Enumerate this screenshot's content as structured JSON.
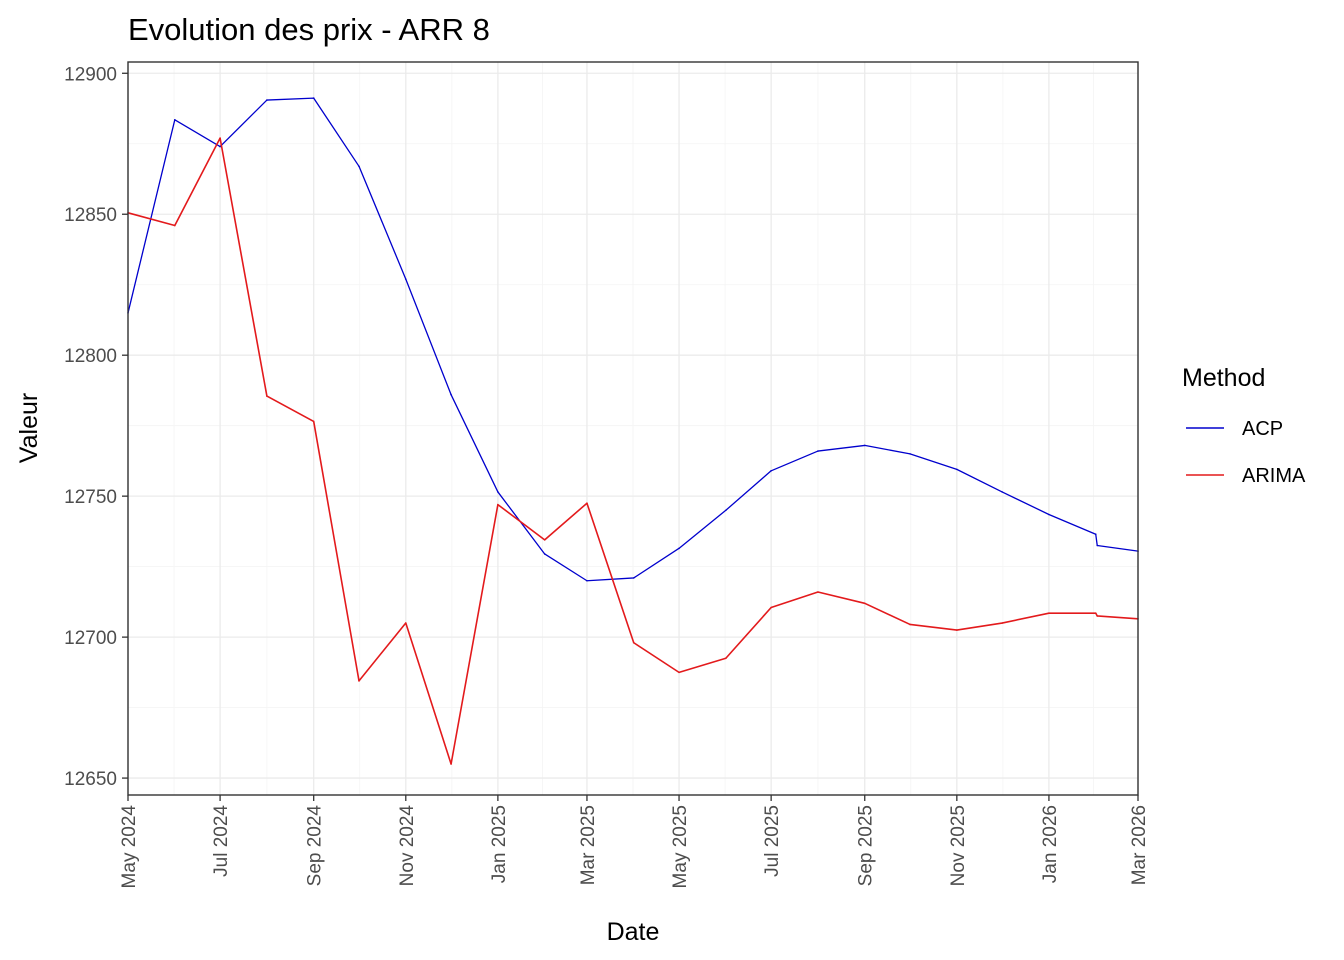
{
  "chart_data": {
    "type": "line",
    "title": "Evolution des prix - ARR 8",
    "xlabel": "Date",
    "ylabel": "Valeur",
    "legend_title": "Method",
    "legend_position": "right",
    "grid": true,
    "xlim": [
      "2024-05-01",
      "2026-03-01"
    ],
    "ylim": [
      12644,
      12904
    ],
    "y_ticks": [
      12650,
      12700,
      12750,
      12800,
      12850,
      12900
    ],
    "x_ticks": [
      {
        "date": "2024-05-01",
        "label": "May 2024"
      },
      {
        "date": "2024-07-01",
        "label": "Jul 2024"
      },
      {
        "date": "2024-09-01",
        "label": "Sep 2024"
      },
      {
        "date": "2024-11-01",
        "label": "Nov 2024"
      },
      {
        "date": "2025-01-01",
        "label": "Jan 2025"
      },
      {
        "date": "2025-03-01",
        "label": "Mar 2025"
      },
      {
        "date": "2025-05-01",
        "label": "May 2025"
      },
      {
        "date": "2025-07-01",
        "label": "Jul 2025"
      },
      {
        "date": "2025-09-01",
        "label": "Sep 2025"
      },
      {
        "date": "2025-11-01",
        "label": "Nov 2025"
      },
      {
        "date": "2026-01-01",
        "label": "Jan 2026"
      },
      {
        "date": "2026-03-01",
        "label": "Mar 2026"
      }
    ],
    "series": [
      {
        "name": "ACP",
        "color": "#0000cd",
        "points": [
          {
            "x": "2024-05-01",
            "y": 12815
          },
          {
            "x": "2024-06-01",
            "y": 12883.5
          },
          {
            "x": "2024-07-01",
            "y": 12874
          },
          {
            "x": "2024-08-01",
            "y": 12890.5
          },
          {
            "x": "2024-09-01",
            "y": 12891.2
          },
          {
            "x": "2024-10-01",
            "y": 12867
          },
          {
            "x": "2024-11-01",
            "y": 12827
          },
          {
            "x": "2024-12-01",
            "y": 12786
          },
          {
            "x": "2025-01-01",
            "y": 12751.5
          },
          {
            "x": "2025-02-01",
            "y": 12729.5
          },
          {
            "x": "2025-03-01",
            "y": 12720
          },
          {
            "x": "2025-04-01",
            "y": 12721
          },
          {
            "x": "2025-05-01",
            "y": 12731.5
          },
          {
            "x": "2025-06-01",
            "y": 12745
          },
          {
            "x": "2025-07-01",
            "y": 12759
          },
          {
            "x": "2025-08-01",
            "y": 12766
          },
          {
            "x": "2025-09-01",
            "y": 12768
          },
          {
            "x": "2025-10-01",
            "y": 12765
          },
          {
            "x": "2025-11-01",
            "y": 12759.5
          },
          {
            "x": "2025-12-01",
            "y": 12751.5
          },
          {
            "x": "2026-01-01",
            "y": 12743.5
          },
          {
            "x": "2026-02-01",
            "y": 12736.5
          },
          {
            "x": "2026-02-02",
            "y": 12732.5
          },
          {
            "x": "2026-03-01",
            "y": 12730.5
          }
        ]
      },
      {
        "name": "ARIMA",
        "color": "#e31a1c",
        "points": [
          {
            "x": "2024-05-01",
            "y": 12850.5
          },
          {
            "x": "2024-06-01",
            "y": 12846
          },
          {
            "x": "2024-07-01",
            "y": 12877
          },
          {
            "x": "2024-08-01",
            "y": 12785.5
          },
          {
            "x": "2024-09-01",
            "y": 12776.5
          },
          {
            "x": "2024-10-01",
            "y": 12684.5
          },
          {
            "x": "2024-11-01",
            "y": 12705
          },
          {
            "x": "2024-12-01",
            "y": 12655
          },
          {
            "x": "2025-01-01",
            "y": 12747
          },
          {
            "x": "2025-02-01",
            "y": 12734.5
          },
          {
            "x": "2025-03-01",
            "y": 12747.5
          },
          {
            "x": "2025-04-01",
            "y": 12698
          },
          {
            "x": "2025-05-01",
            "y": 12687.5
          },
          {
            "x": "2025-06-01",
            "y": 12692.5
          },
          {
            "x": "2025-07-01",
            "y": 12710.5
          },
          {
            "x": "2025-08-01",
            "y": 12716
          },
          {
            "x": "2025-09-01",
            "y": 12712
          },
          {
            "x": "2025-10-01",
            "y": 12704.5
          },
          {
            "x": "2025-11-01",
            "y": 12702.5
          },
          {
            "x": "2025-12-01",
            "y": 12705
          },
          {
            "x": "2026-01-01",
            "y": 12708.5
          },
          {
            "x": "2026-02-01",
            "y": 12708.5
          },
          {
            "x": "2026-02-02",
            "y": 12707.5
          },
          {
            "x": "2026-03-01",
            "y": 12706.5
          }
        ]
      }
    ]
  }
}
